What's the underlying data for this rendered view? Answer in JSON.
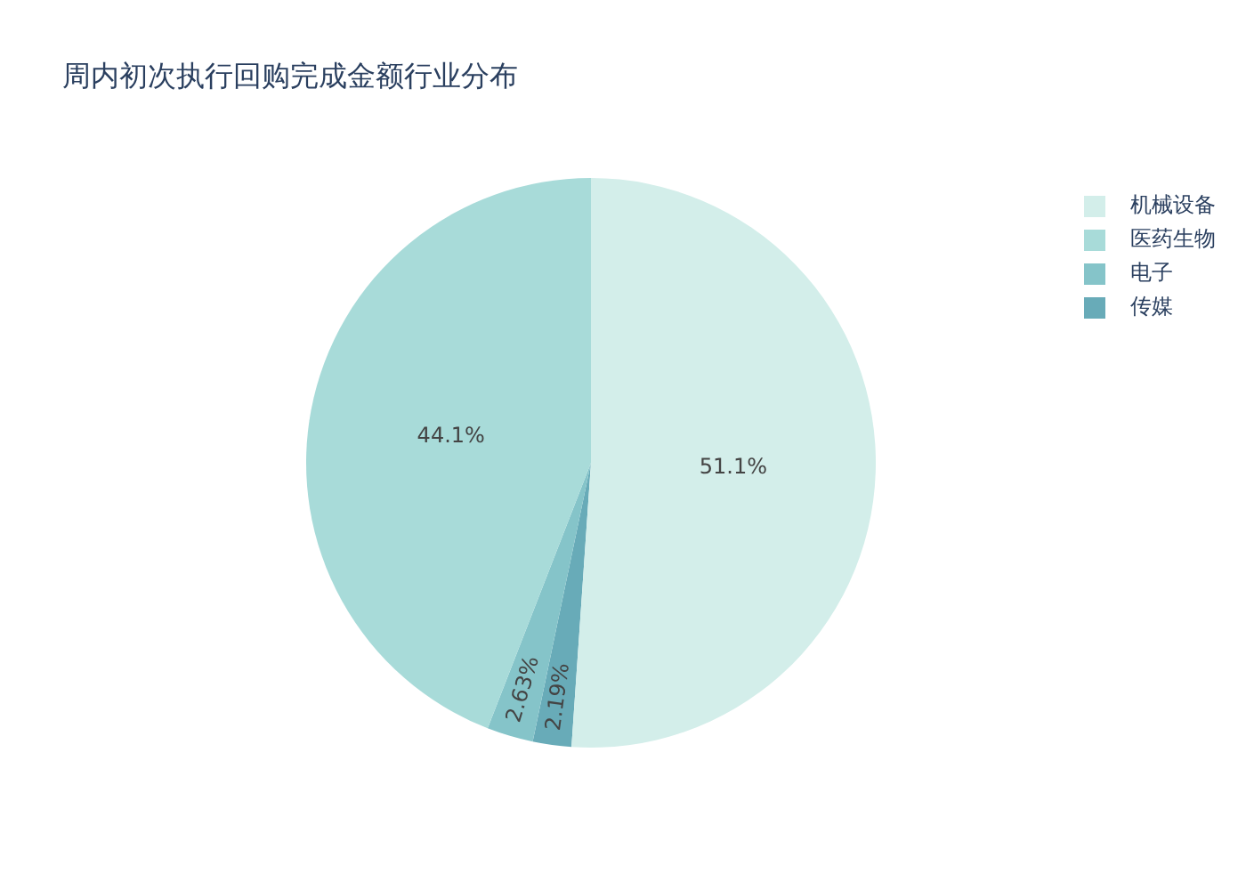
{
  "chart_data": {
    "type": "pie",
    "title": "周内初次执行回购完成金额行业分布",
    "categories": [
      "机械设备",
      "医药生物",
      "电子",
      "传媒"
    ],
    "values": [
      51.1,
      44.1,
      2.63,
      2.19
    ],
    "colors": [
      "#d3eeea",
      "#a8dbd9",
      "#85c4c9",
      "#68abb8"
    ],
    "value_labels": [
      "51.1%",
      "44.1%",
      "2.63%",
      "2.19%"
    ],
    "legend": "top right"
  }
}
